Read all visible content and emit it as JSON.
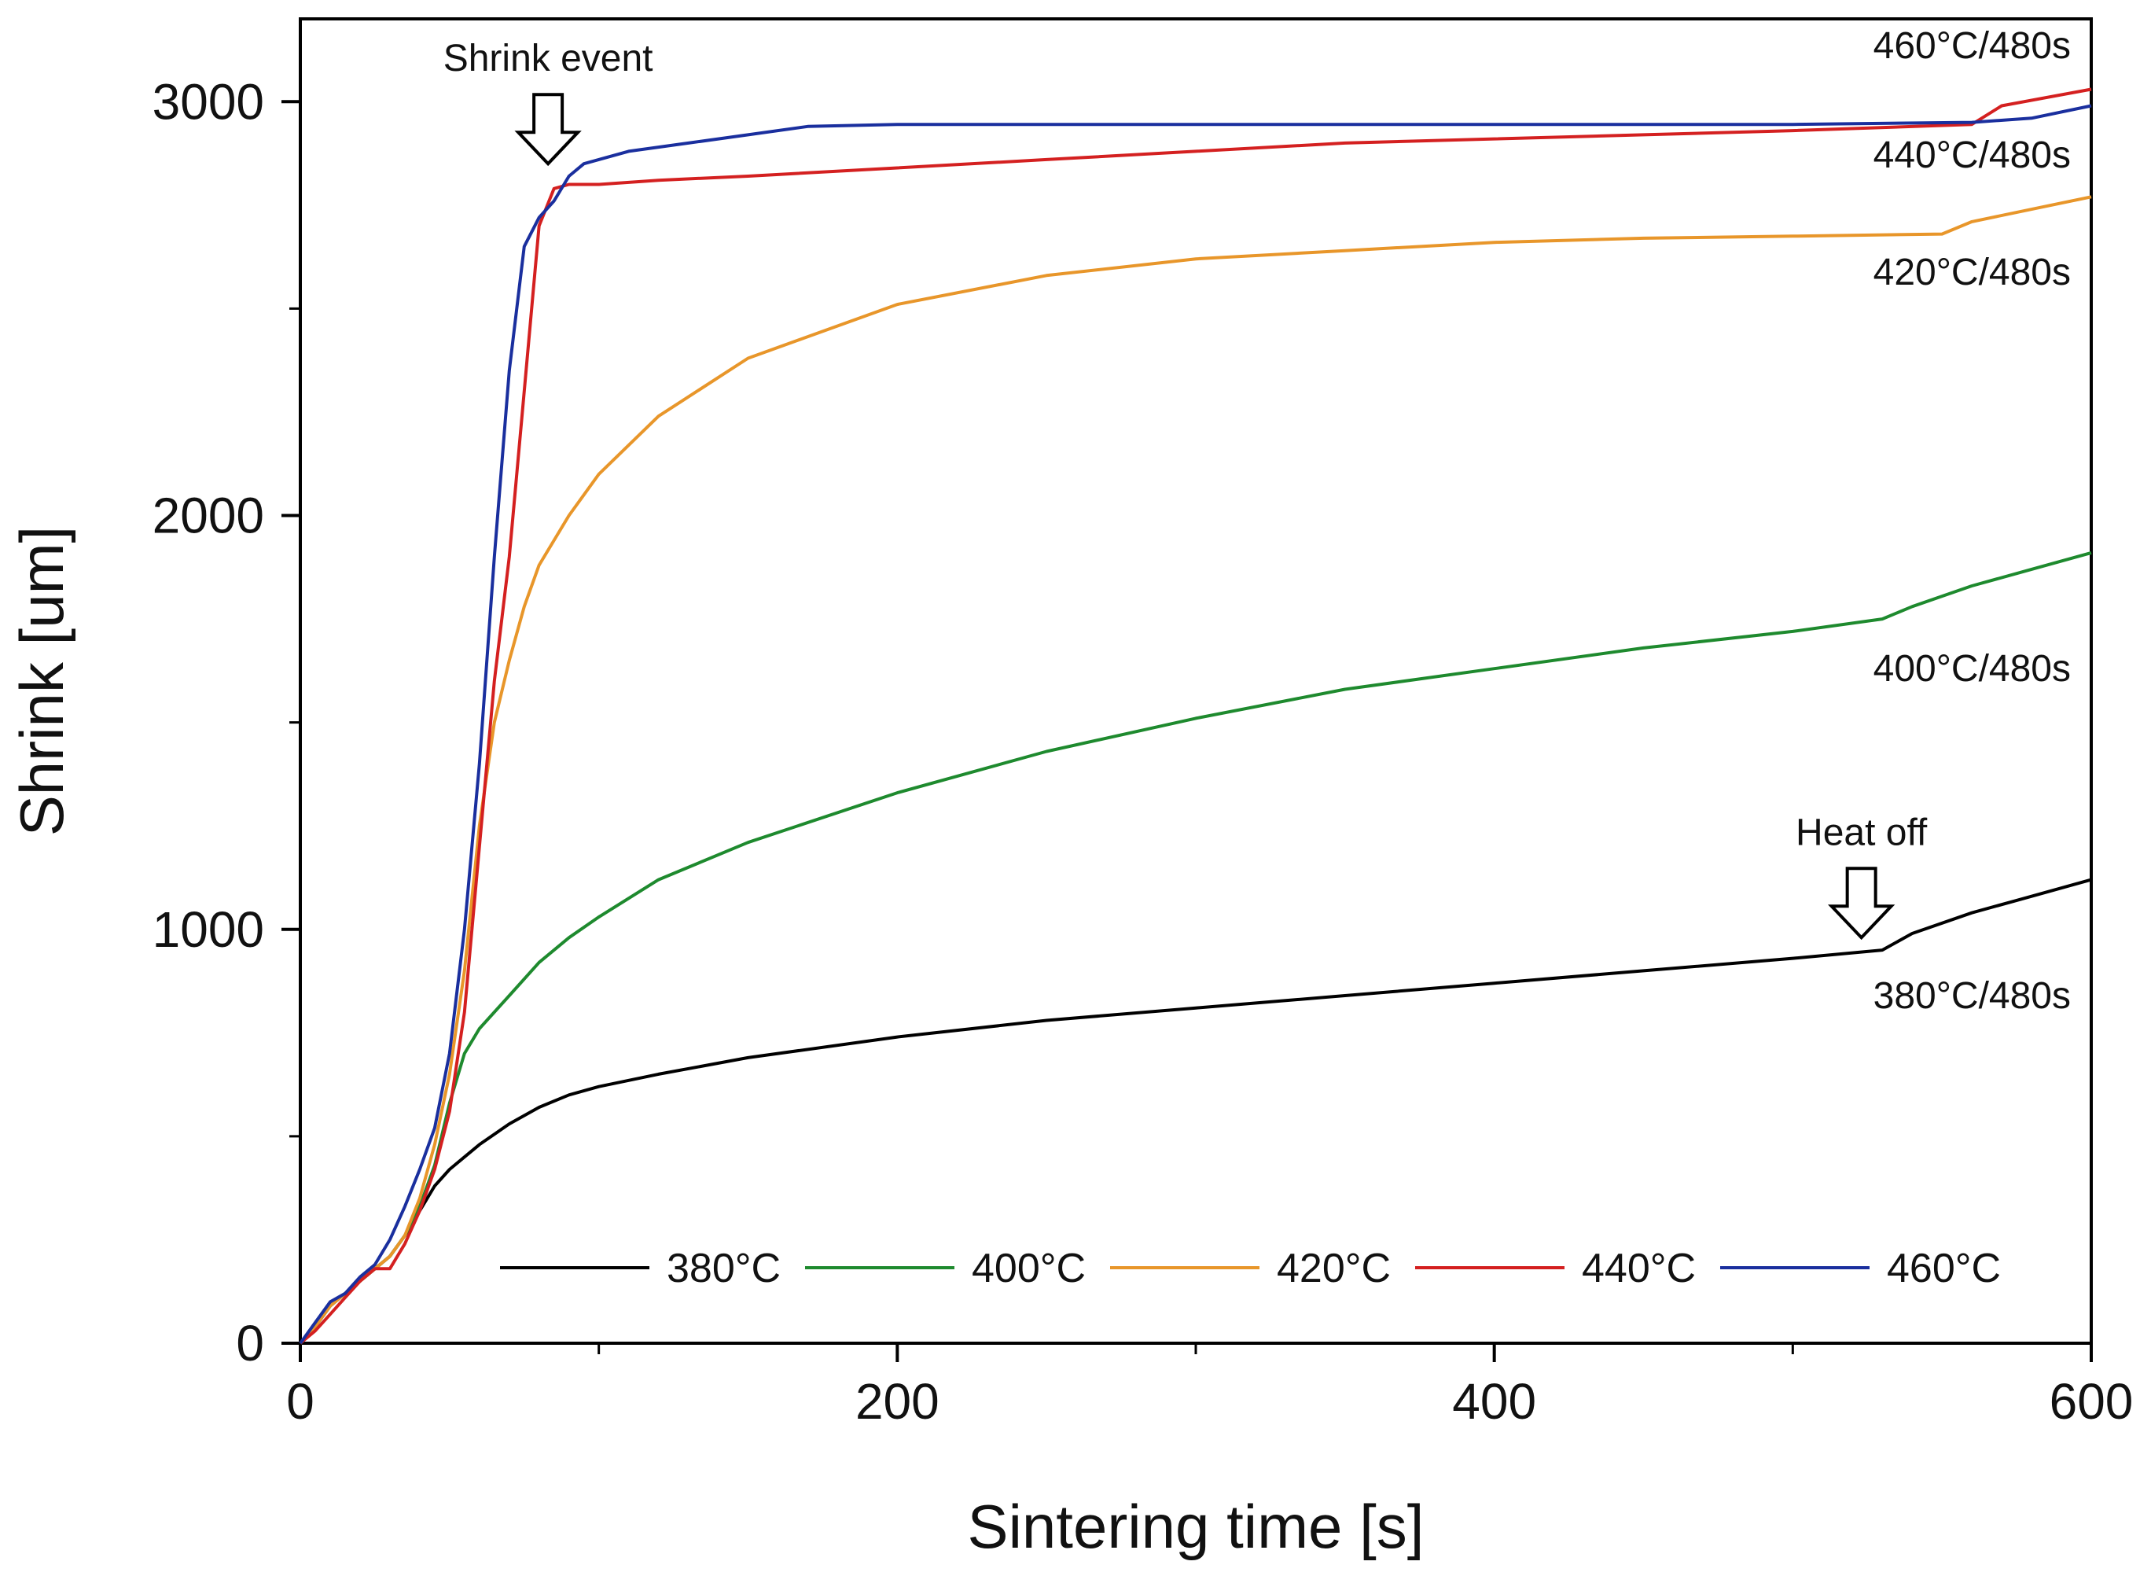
{
  "chart_data": {
    "type": "line",
    "title": "",
    "xlabel": "Sintering time [s]",
    "ylabel": "Shrink [um]",
    "xlim": [
      0,
      600
    ],
    "ylim": [
      0,
      3200
    ],
    "xticks": [
      0,
      200,
      400,
      600
    ],
    "xticks_minor": [
      100,
      300,
      500
    ],
    "yticks": [
      0,
      1000,
      2000,
      3000
    ],
    "yticks_minor": [
      500,
      1500,
      2500
    ],
    "grid": false,
    "legend_position": "bottom-center",
    "series": [
      {
        "name": "380°C",
        "color": "#000000",
        "end_label": "380°C/480s",
        "x": [
          0,
          5,
          10,
          15,
          20,
          25,
          30,
          35,
          40,
          45,
          50,
          55,
          60,
          70,
          80,
          90,
          100,
          120,
          150,
          200,
          250,
          300,
          350,
          400,
          450,
          500,
          530,
          540,
          560,
          580,
          600
        ],
        "y": [
          0,
          40,
          90,
          120,
          150,
          180,
          210,
          260,
          320,
          380,
          420,
          450,
          480,
          530,
          570,
          600,
          620,
          650,
          690,
          740,
          780,
          810,
          840,
          870,
          900,
          930,
          950,
          990,
          1040,
          1080,
          1120
        ]
      },
      {
        "name": "400°C",
        "color": "#1e8a2e",
        "end_label": "400°C/480s",
        "x": [
          0,
          5,
          10,
          15,
          20,
          25,
          30,
          35,
          40,
          45,
          50,
          55,
          60,
          70,
          80,
          90,
          100,
          120,
          150,
          200,
          250,
          300,
          350,
          400,
          450,
          500,
          530,
          540,
          560,
          580,
          600
        ],
        "y": [
          0,
          40,
          90,
          120,
          150,
          180,
          210,
          260,
          330,
          430,
          580,
          700,
          760,
          840,
          920,
          980,
          1030,
          1120,
          1210,
          1330,
          1430,
          1510,
          1580,
          1630,
          1680,
          1720,
          1750,
          1780,
          1830,
          1870,
          1910
        ]
      },
      {
        "name": "420°C",
        "color": "#e8962a",
        "end_label": "420°C/480s",
        "x": [
          0,
          5,
          10,
          15,
          20,
          25,
          30,
          35,
          40,
          45,
          50,
          55,
          60,
          65,
          70,
          75,
          80,
          90,
          100,
          120,
          150,
          200,
          250,
          300,
          350,
          400,
          450,
          500,
          550,
          560,
          600
        ],
        "y": [
          0,
          40,
          90,
          120,
          150,
          180,
          210,
          260,
          350,
          480,
          650,
          900,
          1250,
          1500,
          1650,
          1780,
          1880,
          2000,
          2100,
          2240,
          2380,
          2510,
          2580,
          2620,
          2640,
          2660,
          2670,
          2675,
          2680,
          2710,
          2770
        ]
      },
      {
        "name": "440°C",
        "color": "#d42020",
        "end_label": "440°C/480s",
        "x": [
          0,
          5,
          10,
          15,
          20,
          25,
          30,
          35,
          40,
          45,
          50,
          55,
          60,
          65,
          70,
          75,
          80,
          85,
          90,
          100,
          120,
          150,
          200,
          250,
          300,
          350,
          400,
          450,
          500,
          560,
          570,
          600
        ],
        "y": [
          0,
          30,
          70,
          110,
          150,
          180,
          180,
          240,
          320,
          420,
          560,
          800,
          1200,
          1600,
          1900,
          2300,
          2700,
          2790,
          2800,
          2800,
          2810,
          2820,
          2840,
          2860,
          2880,
          2900,
          2910,
          2920,
          2930,
          2945,
          2990,
          3030
        ]
      },
      {
        "name": "460°C",
        "color": "#1a2f9e",
        "end_label": "460°C/480s",
        "x": [
          0,
          5,
          10,
          15,
          20,
          25,
          30,
          35,
          40,
          45,
          50,
          55,
          60,
          65,
          70,
          75,
          80,
          85,
          90,
          95,
          100,
          110,
          130,
          150,
          170,
          200,
          300,
          400,
          500,
          560,
          580,
          600
        ],
        "y": [
          0,
          50,
          100,
          120,
          160,
          190,
          250,
          330,
          420,
          520,
          700,
          1000,
          1400,
          1900,
          2350,
          2650,
          2720,
          2760,
          2820,
          2850,
          2860,
          2880,
          2900,
          2920,
          2940,
          2945,
          2945,
          2945,
          2945,
          2950,
          2960,
          2990
        ]
      }
    ],
    "annotations": [
      {
        "id": "shrink-event",
        "text": "Shrink event",
        "x": 83,
        "y": 2850
      },
      {
        "id": "heat-off",
        "text": "Heat off",
        "x": 523,
        "y": 980
      }
    ]
  }
}
